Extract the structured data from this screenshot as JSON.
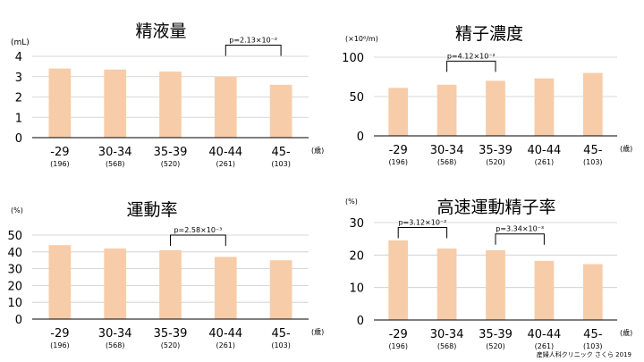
{
  "axis_unit_label": "(歳)",
  "credit": "産婦人科クリニック さくら 2019",
  "colors": {
    "bar": "#f7cca9",
    "grid": "#cccccc",
    "axis": "#000000"
  },
  "chart_data": [
    {
      "type": "bar",
      "title": "精液量",
      "unit": "(mL)",
      "categories": [
        "-29",
        "30-34",
        "35-39",
        "40-44",
        "45-"
      ],
      "category_counts": [
        "(196)",
        "(568)",
        "(520)",
        "(261)",
        "(103)"
      ],
      "values": [
        3.4,
        3.35,
        3.25,
        3.0,
        2.6
      ],
      "ylim": [
        0,
        4
      ],
      "yticks": [
        0,
        1,
        2,
        3,
        4
      ],
      "grid": true,
      "annotations": [
        {
          "from": 3,
          "to": 4,
          "level": 4.55,
          "text": "p=2.13×10⁻²"
        }
      ]
    },
    {
      "type": "bar",
      "title": "精子濃度",
      "unit": "(×10⁶/m)",
      "categories": [
        "-29",
        "30-34",
        "35-39",
        "40-44",
        "45-"
      ],
      "category_counts": [
        "(196)",
        "(568)",
        "(520)",
        "(261)",
        "(103)"
      ],
      "values": [
        61,
        65,
        70,
        73,
        80
      ],
      "ylim": [
        0,
        100
      ],
      "yticks": [
        0,
        50,
        100
      ],
      "grid": true,
      "annotations": [
        {
          "from": 1,
          "to": 2,
          "level": 95,
          "text": "p=4.12×10⁻²"
        }
      ]
    },
    {
      "type": "bar",
      "title": "運動率",
      "unit": "(%)",
      "categories": [
        "-29",
        "30-34",
        "35-39",
        "40-44",
        "45-"
      ],
      "category_counts": [
        "(196)",
        "(568)",
        "(520)",
        "(261)",
        "(103)"
      ],
      "values": [
        44,
        42,
        41,
        37,
        35
      ],
      "ylim": [
        0,
        50
      ],
      "yticks": [
        0,
        10,
        20,
        30,
        40,
        50
      ],
      "grid": true,
      "annotations": [
        {
          "from": 2,
          "to": 3,
          "level": 50,
          "text": "p=2.58×10⁻³"
        }
      ]
    },
    {
      "type": "bar",
      "title": "高速運動精子率",
      "unit": "(%)",
      "categories": [
        "-29",
        "30-34",
        "35-39",
        "40-44",
        "45-"
      ],
      "category_counts": [
        "(196)",
        "(568)",
        "(520)",
        "(261)",
        "(103)"
      ],
      "values": [
        24.5,
        22,
        21.5,
        18.2,
        17.2
      ],
      "ylim": [
        0,
        30
      ],
      "yticks": [
        0,
        10,
        20,
        30
      ],
      "grid": true,
      "annotations": [
        {
          "from": 0,
          "to": 1,
          "level": 28.5,
          "text": "p=3.12×10⁻²"
        },
        {
          "from": 2,
          "to": 3,
          "level": 26.5,
          "text": "p=3.34×10⁻³"
        }
      ]
    }
  ]
}
